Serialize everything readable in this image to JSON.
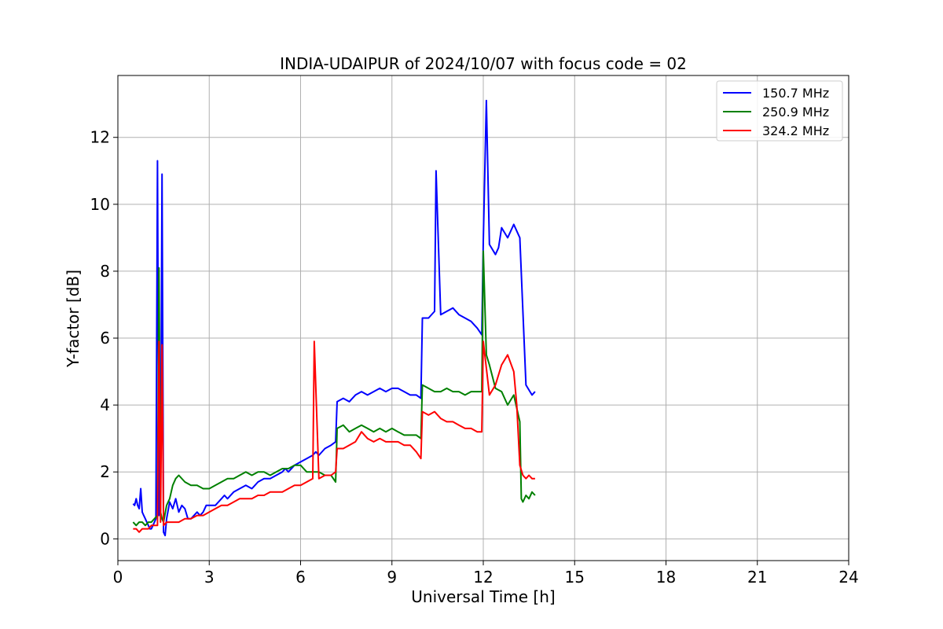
{
  "chart_data": {
    "type": "line",
    "title": "INDIA-UDAIPUR of 2024/10/07 with focus code = 02",
    "xlabel": "Universal Time [h]",
    "ylabel": "Y-factor [dB]",
    "xlim": [
      0,
      24
    ],
    "ylim": [
      -0.65,
      13.85
    ],
    "x_ticks": [
      0,
      3,
      6,
      9,
      12,
      15,
      18,
      21,
      24
    ],
    "y_ticks": [
      0,
      2,
      4,
      6,
      8,
      10,
      12
    ],
    "grid": true,
    "legend_position": "top-right",
    "series": [
      {
        "name": "150.7 MHz",
        "color": "#0000ff",
        "x": [
          0.5,
          0.55,
          0.6,
          0.65,
          0.7,
          0.75,
          0.8,
          0.85,
          0.9,
          0.95,
          1.0,
          1.05,
          1.1,
          1.15,
          1.2,
          1.25,
          1.3,
          1.35,
          1.4,
          1.45,
          1.5,
          1.55,
          1.6,
          1.7,
          1.8,
          1.9,
          2.0,
          2.1,
          2.2,
          2.3,
          2.4,
          2.5,
          2.6,
          2.7,
          2.8,
          2.9,
          3.0,
          3.2,
          3.4,
          3.5,
          3.6,
          3.8,
          4.0,
          4.2,
          4.4,
          4.5,
          4.6,
          4.8,
          5.0,
          5.2,
          5.4,
          5.5,
          5.6,
          5.8,
          6.0,
          6.2,
          6.4,
          6.5,
          6.6,
          6.8,
          7.0,
          7.15,
          7.2,
          7.4,
          7.6,
          7.8,
          8.0,
          8.2,
          8.4,
          8.6,
          8.8,
          9.0,
          9.2,
          9.4,
          9.6,
          9.8,
          9.95,
          10.0,
          10.2,
          10.4,
          10.45,
          10.6,
          10.8,
          11.0,
          11.2,
          11.4,
          11.6,
          11.8,
          11.95,
          12.0,
          12.1,
          12.2,
          12.4,
          12.5,
          12.6,
          12.8,
          13.0,
          13.2,
          13.4,
          13.6,
          13.7
        ],
        "y": [
          1.05,
          1.0,
          1.2,
          1.0,
          0.9,
          1.5,
          0.8,
          0.7,
          0.6,
          0.5,
          0.4,
          0.3,
          0.3,
          0.4,
          0.5,
          0.6,
          11.3,
          0.7,
          1.0,
          10.9,
          0.2,
          0.1,
          0.6,
          1.1,
          0.9,
          1.2,
          0.8,
          1.0,
          0.9,
          0.6,
          0.6,
          0.7,
          0.8,
          0.7,
          0.8,
          1.0,
          1.0,
          1.0,
          1.2,
          1.3,
          1.2,
          1.4,
          1.5,
          1.6,
          1.5,
          1.6,
          1.7,
          1.8,
          1.8,
          1.9,
          2.0,
          2.1,
          2.0,
          2.2,
          2.3,
          2.4,
          2.5,
          2.6,
          2.5,
          2.7,
          2.8,
          2.9,
          4.1,
          4.2,
          4.1,
          4.3,
          4.4,
          4.3,
          4.4,
          4.5,
          4.4,
          4.5,
          4.5,
          4.4,
          4.3,
          4.3,
          4.2,
          6.6,
          6.6,
          6.8,
          11.0,
          6.7,
          6.8,
          6.9,
          6.7,
          6.6,
          6.5,
          6.3,
          6.1,
          8.9,
          13.1,
          8.8,
          8.5,
          8.7,
          9.3,
          9.0,
          9.4,
          9.0,
          4.6,
          4.3,
          4.4
        ]
      },
      {
        "name": "250.9 MHz",
        "color": "#008000",
        "x": [
          0.5,
          0.6,
          0.7,
          0.8,
          0.9,
          1.0,
          1.1,
          1.2,
          1.3,
          1.35,
          1.4,
          1.45,
          1.5,
          1.6,
          1.7,
          1.8,
          1.9,
          2.0,
          2.2,
          2.4,
          2.6,
          2.8,
          3.0,
          3.2,
          3.4,
          3.6,
          3.8,
          4.0,
          4.2,
          4.4,
          4.6,
          4.8,
          5.0,
          5.2,
          5.4,
          5.6,
          5.8,
          6.0,
          6.2,
          6.4,
          6.6,
          6.8,
          7.0,
          7.15,
          7.2,
          7.4,
          7.6,
          7.8,
          8.0,
          8.2,
          8.4,
          8.6,
          8.8,
          9.0,
          9.2,
          9.4,
          9.6,
          9.8,
          9.95,
          10.0,
          10.2,
          10.4,
          10.6,
          10.8,
          11.0,
          11.2,
          11.4,
          11.6,
          11.8,
          11.95,
          12.0,
          12.1,
          12.2,
          12.4,
          12.6,
          12.8,
          13.0,
          13.2,
          13.25,
          13.3,
          13.4,
          13.5,
          13.6,
          13.7
        ],
        "y": [
          0.5,
          0.4,
          0.5,
          0.5,
          0.4,
          0.5,
          0.5,
          0.6,
          0.7,
          8.1,
          0.8,
          0.6,
          0.5,
          1.0,
          1.2,
          1.6,
          1.8,
          1.9,
          1.7,
          1.6,
          1.6,
          1.5,
          1.5,
          1.6,
          1.7,
          1.8,
          1.8,
          1.9,
          2.0,
          1.9,
          2.0,
          2.0,
          1.9,
          2.0,
          2.1,
          2.1,
          2.2,
          2.2,
          2.0,
          2.0,
          2.0,
          1.9,
          1.9,
          1.7,
          3.3,
          3.4,
          3.2,
          3.3,
          3.4,
          3.3,
          3.2,
          3.3,
          3.2,
          3.3,
          3.2,
          3.1,
          3.1,
          3.1,
          3.0,
          4.6,
          4.5,
          4.4,
          4.4,
          4.5,
          4.4,
          4.4,
          4.3,
          4.4,
          4.4,
          4.4,
          8.6,
          5.5,
          5.2,
          4.5,
          4.4,
          4.0,
          4.3,
          3.5,
          1.2,
          1.1,
          1.3,
          1.2,
          1.4,
          1.3
        ]
      },
      {
        "name": "324.2 MHz",
        "color": "#ff0000",
        "x": [
          0.5,
          0.6,
          0.7,
          0.8,
          0.9,
          1.0,
          1.1,
          1.2,
          1.3,
          1.35,
          1.4,
          1.45,
          1.5,
          1.6,
          1.8,
          2.0,
          2.2,
          2.4,
          2.6,
          2.8,
          3.0,
          3.2,
          3.4,
          3.6,
          3.8,
          4.0,
          4.2,
          4.4,
          4.6,
          4.8,
          5.0,
          5.2,
          5.4,
          5.6,
          5.8,
          6.0,
          6.2,
          6.4,
          6.45,
          6.6,
          6.8,
          7.0,
          7.15,
          7.2,
          7.4,
          7.6,
          7.8,
          8.0,
          8.2,
          8.4,
          8.6,
          8.8,
          9.0,
          9.2,
          9.4,
          9.6,
          9.8,
          9.95,
          10.0,
          10.2,
          10.4,
          10.6,
          10.8,
          11.0,
          11.2,
          11.4,
          11.6,
          11.8,
          11.95,
          12.0,
          12.1,
          12.2,
          12.4,
          12.6,
          12.8,
          13.0,
          13.1,
          13.2,
          13.3,
          13.4,
          13.5,
          13.6,
          13.7
        ],
        "y": [
          0.3,
          0.3,
          0.2,
          0.3,
          0.3,
          0.3,
          0.4,
          0.4,
          0.4,
          5.9,
          0.5,
          5.8,
          0.4,
          0.5,
          0.5,
          0.5,
          0.6,
          0.6,
          0.7,
          0.7,
          0.8,
          0.9,
          1.0,
          1.0,
          1.1,
          1.2,
          1.2,
          1.2,
          1.3,
          1.3,
          1.4,
          1.4,
          1.4,
          1.5,
          1.6,
          1.6,
          1.7,
          1.8,
          5.9,
          1.8,
          1.9,
          1.9,
          2.0,
          2.7,
          2.7,
          2.8,
          2.9,
          3.2,
          3.0,
          2.9,
          3.0,
          2.9,
          2.9,
          2.9,
          2.8,
          2.8,
          2.6,
          2.4,
          3.8,
          3.7,
          3.8,
          3.6,
          3.5,
          3.5,
          3.4,
          3.3,
          3.3,
          3.2,
          3.2,
          5.9,
          5.1,
          4.3,
          4.6,
          5.2,
          5.5,
          5.0,
          4.0,
          2.2,
          1.9,
          1.8,
          1.9,
          1.8,
          1.8
        ]
      }
    ]
  }
}
